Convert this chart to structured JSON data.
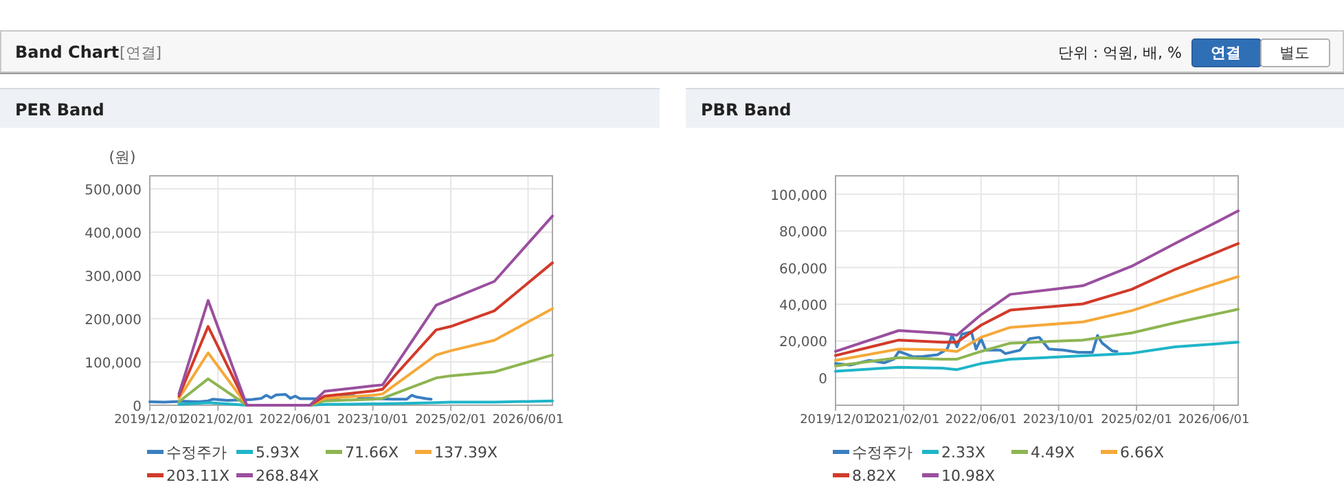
{
  "chart_data": [
    {
      "type": "other",
      "title": "Band Chart",
      "subtitle": "[연결]",
      "annotations": [
        "단위 : 억원, 배, %",
        "연결",
        "별도"
      ]
    },
    {
      "type": "line",
      "title": "PER Band",
      "ylabel": "(원)",
      "xlim": [
        "2019-12-01",
        "2026-11-01"
      ],
      "ylim": [
        0,
        530000
      ],
      "xticks": [
        {
          "value": "2019-12-01",
          "label": "2019/12/01"
        },
        {
          "value": "2021-02-01",
          "label": "2021/02/01"
        },
        {
          "value": "2022-06-01",
          "label": "2022/06/01"
        },
        {
          "value": "2023-10-01",
          "label": "2023/10/01"
        },
        {
          "value": "2025-02-01",
          "label": "2025/02/01"
        },
        {
          "value": "2026-06-01",
          "label": "2026/06/01"
        }
      ],
      "yticks": [
        0,
        {
          "value": 100000,
          "label": "100,000"
        },
        {
          "value": 200000,
          "label": "200,000"
        },
        {
          "value": 300000,
          "label": "300,000"
        },
        {
          "value": 400000,
          "label": "400,000"
        },
        {
          "value": 500000,
          "label": "500,000"
        }
      ],
      "grid": true,
      "legend": "bottom",
      "marker": "none",
      "line_style": "solid",
      "series": [
        {
          "name": "수정주가",
          "color": "#3a7fc1",
          "x": [
            "2019-12",
            "2020-03",
            "2020-07",
            "2020-10",
            "2020-12",
            "2021-01",
            "2021-04",
            "2021-06",
            "2021-09",
            "2021-11",
            "2021-12",
            "2022-01",
            "2022-02",
            "2022-04",
            "2022-05",
            "2022-06",
            "2022-07",
            "2022-10",
            "2022-11",
            "2023-02",
            "2023-04",
            "2023-06",
            "2023-08",
            "2023-11",
            "2024-02",
            "2024-05",
            "2024-06",
            "2024-07",
            "2024-09",
            "2024-10"
          ],
          "values": [
            8000,
            7000,
            9000,
            8000,
            10000,
            14000,
            11000,
            12000,
            13000,
            16000,
            23000,
            17000,
            24000,
            25000,
            16000,
            21000,
            15000,
            15000,
            13000,
            15000,
            21000,
            22000,
            16000,
            15000,
            14000,
            14000,
            23000,
            19000,
            15000,
            14000
          ]
        },
        {
          "name": "5.93X",
          "color": "#1fb5c8",
          "x": [
            "2020-06",
            "2020-12",
            "2021-08",
            "2022-09",
            "2022-12",
            "2023-10",
            "2023-12",
            "2024-11",
            "2025-02",
            "2025-11",
            "2026-11"
          ],
          "values": [
            2000,
            6000,
            0,
            0,
            2000,
            3000,
            3000,
            6000,
            7000,
            7000,
            10000
          ]
        },
        {
          "name": "71.66X",
          "color": "#8db552",
          "x": [
            "2020-06",
            "2020-12",
            "2021-08",
            "2022-09",
            "2022-12",
            "2023-10",
            "2023-12",
            "2024-11",
            "2025-02",
            "2025-11",
            "2026-11"
          ],
          "values": [
            8000,
            61000,
            0,
            0,
            10000,
            14000,
            16000,
            63000,
            68000,
            77000,
            116000
          ]
        },
        {
          "name": "137.39X",
          "color": "#f5a93a",
          "x": [
            "2020-06",
            "2020-12",
            "2021-08",
            "2022-09",
            "2022-12",
            "2023-10",
            "2023-12",
            "2024-11",
            "2025-02",
            "2025-11",
            "2026-11"
          ],
          "values": [
            16000,
            121000,
            0,
            0,
            16000,
            23000,
            26000,
            116000,
            126000,
            150000,
            223000
          ]
        },
        {
          "name": "203.11X",
          "color": "#d23a2a",
          "x": [
            "2020-06",
            "2020-12",
            "2021-08",
            "2022-09",
            "2022-12",
            "2023-10",
            "2023-12",
            "2024-11",
            "2025-02",
            "2025-11",
            "2026-11"
          ],
          "values": [
            21000,
            182000,
            0,
            0,
            21000,
            33000,
            37000,
            174000,
            182000,
            218000,
            329000
          ]
        },
        {
          "name": "268.84X",
          "color": "#9a4f9e",
          "x": [
            "2020-06",
            "2020-12",
            "2021-08",
            "2022-09",
            "2022-12",
            "2023-10",
            "2023-12",
            "2024-11",
            "2025-02",
            "2025-11",
            "2026-11"
          ],
          "values": [
            26000,
            242000,
            0,
            0,
            32000,
            45000,
            47000,
            231000,
            245000,
            286000,
            437000
          ]
        }
      ]
    },
    {
      "type": "line",
      "title": "PBR Band",
      "xlim": [
        "2019-12-01",
        "2026-11-01"
      ],
      "ylim": [
        -15000,
        110000
      ],
      "xticks": [
        {
          "value": "2019-12-01",
          "label": "2019/12/01"
        },
        {
          "value": "2021-02-01",
          "label": "2021/02/01"
        },
        {
          "value": "2022-06-01",
          "label": "2022/06/01"
        },
        {
          "value": "2023-10-01",
          "label": "2023/10/01"
        },
        {
          "value": "2025-02-01",
          "label": "2025/02/01"
        },
        {
          "value": "2026-06-01",
          "label": "2026/06/01"
        }
      ],
      "yticks": [
        0,
        {
          "value": 20000,
          "label": "20,000"
        },
        {
          "value": 40000,
          "label": "40,000"
        },
        {
          "value": 60000,
          "label": "60,000"
        },
        {
          "value": 80000,
          "label": "80,000"
        },
        {
          "value": 100000,
          "label": "100,000"
        }
      ],
      "grid": true,
      "legend": "bottom",
      "marker": "none",
      "line_style": "solid",
      "series": [
        {
          "name": "수정주가",
          "color": "#3a7fc1",
          "x": [
            "2019-12",
            "2020-03",
            "2020-07",
            "2020-10",
            "2020-12",
            "2021-01",
            "2021-04",
            "2021-06",
            "2021-09",
            "2021-11",
            "2021-12",
            "2022-01",
            "2022-02",
            "2022-04",
            "2022-05",
            "2022-06",
            "2022-07",
            "2022-10",
            "2022-11",
            "2023-02",
            "2023-04",
            "2023-06",
            "2023-08",
            "2023-11",
            "2024-02",
            "2024-05",
            "2024-06",
            "2024-07",
            "2024-09",
            "2024-10"
          ],
          "values": [
            7700,
            6900,
            9400,
            8100,
            10100,
            14300,
            11400,
            11600,
            12500,
            15600,
            23200,
            16800,
            23700,
            25000,
            15600,
            21200,
            15000,
            15000,
            13100,
            15000,
            21200,
            22000,
            15600,
            15000,
            13800,
            13800,
            23000,
            18800,
            14600,
            14300
          ]
        },
        {
          "name": "2.33X",
          "color": "#1fb5c8",
          "x": [
            "2019-12",
            "2021-01",
            "2021-10",
            "2022-01",
            "2022-06",
            "2022-12",
            "2024-03",
            "2025-01",
            "2025-10",
            "2026-11"
          ],
          "values": [
            3500,
            5700,
            5200,
            4400,
            7700,
            10100,
            11900,
            13300,
            16800,
            19300
          ]
        },
        {
          "name": "4.49X",
          "color": "#8db552",
          "x": [
            "2019-12",
            "2021-01",
            "2021-10",
            "2022-01",
            "2022-06",
            "2022-12",
            "2024-03",
            "2025-01",
            "2025-10",
            "2026-11"
          ],
          "values": [
            6400,
            10900,
            10100,
            10100,
            14300,
            18800,
            20500,
            24400,
            29900,
            37300
          ]
        },
        {
          "name": "6.66X",
          "color": "#f5a93a",
          "x": [
            "2019-12",
            "2021-01",
            "2021-10",
            "2022-01",
            "2022-06",
            "2022-12",
            "2024-03",
            "2025-01",
            "2025-10",
            "2026-11"
          ],
          "values": [
            9400,
            15600,
            15100,
            14300,
            22000,
            27400,
            30400,
            36500,
            44200,
            55100
          ]
        },
        {
          "name": "8.82X",
          "color": "#d23a2a",
          "x": [
            "2019-12",
            "2021-01",
            "2021-10",
            "2022-01",
            "2022-06",
            "2022-12",
            "2024-03",
            "2025-01",
            "2025-10",
            "2026-11"
          ],
          "values": [
            12100,
            20500,
            19300,
            19300,
            28600,
            36800,
            40200,
            48100,
            59000,
            73100
          ]
        },
        {
          "name": "10.98X",
          "color": "#9a4f9e",
          "x": [
            "2019-12",
            "2021-01",
            "2021-10",
            "2022-01",
            "2022-06",
            "2022-12",
            "2024-03",
            "2025-01",
            "2025-10",
            "2026-11"
          ],
          "values": [
            14300,
            25700,
            24200,
            23200,
            34300,
            45400,
            50100,
            60700,
            73100,
            90900
          ]
        }
      ]
    }
  ]
}
